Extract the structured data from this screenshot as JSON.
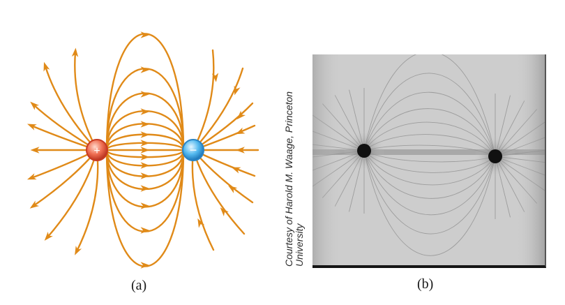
{
  "panels": {
    "a": {
      "label": "(a)",
      "positive_charge": {
        "symbol": "+",
        "color": "#e8553e"
      },
      "negative_charge": {
        "symbol": "−",
        "color": "#3aa3e0"
      },
      "field_line_color": "#e08a18"
    },
    "b": {
      "label": "(b)",
      "credit_line1": "Courtesy of Harold M. Waage, Princeton",
      "credit_line2": "University"
    }
  }
}
